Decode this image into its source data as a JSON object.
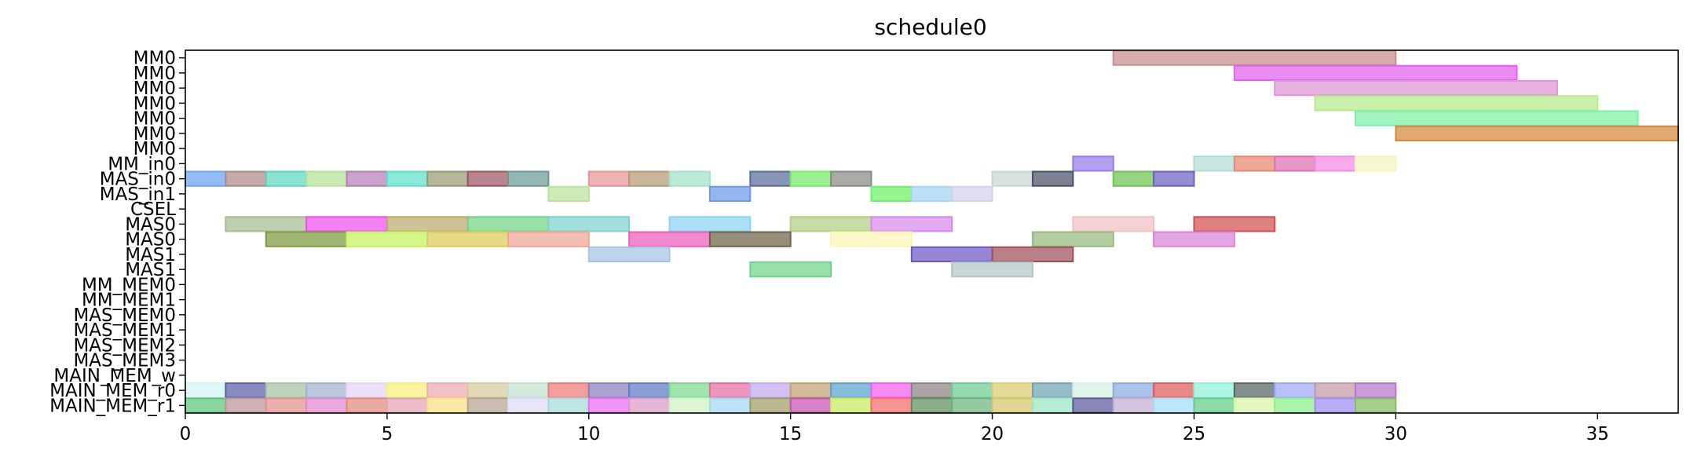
{
  "chart_data": {
    "type": "gantt",
    "title": "schedule0",
    "xlabel": "",
    "ylabel": "",
    "xlim": [
      0,
      37
    ],
    "grid": false,
    "xticks": [
      0,
      5,
      10,
      15,
      20,
      25,
      30,
      35
    ],
    "rows": [
      "MM0",
      "MM0",
      "MM0",
      "MM0",
      "MM0",
      "MM0",
      "MM0",
      "MM_in0",
      "MAS_in0",
      "MAS_in1",
      "CSEL",
      "MAS0",
      "MAS0",
      "MAS1",
      "MAS1",
      "MM_MEM0",
      "MM_MEM1",
      "MAS_MEM0",
      "MAS_MEM1",
      "MAS_MEM2",
      "MAS_MEM3",
      "MAIN_MEM_w",
      "MAIN_MEM_r0",
      "MAIN_MEM_r1"
    ],
    "tasks": [
      {
        "row": 0,
        "start": 23,
        "end": 30,
        "color": "#c98c8c"
      },
      {
        "row": 1,
        "start": 26,
        "end": 33,
        "color": "#e060ef"
      },
      {
        "row": 2,
        "start": 27,
        "end": 34,
        "color": "#de94d6"
      },
      {
        "row": 3,
        "start": 28,
        "end": 35,
        "color": "#b4ec8c"
      },
      {
        "row": 4,
        "start": 29,
        "end": 36,
        "color": "#7ef0a6"
      },
      {
        "row": 5,
        "start": 30,
        "end": 37,
        "color": "#d4883c"
      },
      {
        "row": 7,
        "start": 22,
        "end": 23,
        "color": "#957ce8"
      },
      {
        "row": 7,
        "start": 25,
        "end": 26,
        "color": "#b2dcd4"
      },
      {
        "row": 7,
        "start": 26,
        "end": 27,
        "color": "#e48870"
      },
      {
        "row": 7,
        "start": 27,
        "end": 28,
        "color": "#dc70b0"
      },
      {
        "row": 7,
        "start": 28,
        "end": 29,
        "color": "#f48ae4"
      },
      {
        "row": 7,
        "start": 29,
        "end": 30,
        "color": "#f4f4c2"
      },
      {
        "row": 8,
        "start": 0,
        "end": 1,
        "color": "#6aa2f4"
      },
      {
        "row": 8,
        "start": 1,
        "end": 2,
        "color": "#b08888"
      },
      {
        "row": 8,
        "start": 2,
        "end": 3,
        "color": "#5ed6c4"
      },
      {
        "row": 8,
        "start": 3,
        "end": 4,
        "color": "#b4e298"
      },
      {
        "row": 8,
        "start": 4,
        "end": 5,
        "color": "#b480b6"
      },
      {
        "row": 8,
        "start": 5,
        "end": 6,
        "color": "#5ee0ca"
      },
      {
        "row": 8,
        "start": 6,
        "end": 7,
        "color": "#9a9a72"
      },
      {
        "row": 8,
        "start": 7,
        "end": 8,
        "color": "#9c5462"
      },
      {
        "row": 8,
        "start": 8,
        "end": 9,
        "color": "#6e9896"
      },
      {
        "row": 8,
        "start": 10,
        "end": 11,
        "color": "#e69494"
      },
      {
        "row": 8,
        "start": 11,
        "end": 12,
        "color": "#b49a76"
      },
      {
        "row": 8,
        "start": 12,
        "end": 13,
        "color": "#a2e2c6"
      },
      {
        "row": 8,
        "start": 14,
        "end": 15,
        "color": "#5c6c9a"
      },
      {
        "row": 8,
        "start": 15,
        "end": 16,
        "color": "#74ec64"
      },
      {
        "row": 8,
        "start": 16,
        "end": 17,
        "color": "#888a84"
      },
      {
        "row": 8,
        "start": 20,
        "end": 21,
        "color": "#c6d8ce"
      },
      {
        "row": 8,
        "start": 21,
        "end": 22,
        "color": "#4c5066"
      },
      {
        "row": 8,
        "start": 23,
        "end": 24,
        "color": "#6cc452"
      },
      {
        "row": 8,
        "start": 24,
        "end": 25,
        "color": "#6a62be"
      },
      {
        "row": 9,
        "start": 9,
        "end": 10,
        "color": "#bce29a"
      },
      {
        "row": 9,
        "start": 13,
        "end": 14,
        "color": "#6c98e6"
      },
      {
        "row": 9,
        "start": 17,
        "end": 18,
        "color": "#6ef06a"
      },
      {
        "row": 9,
        "start": 18,
        "end": 19,
        "color": "#a4d4f0"
      },
      {
        "row": 9,
        "start": 19,
        "end": 20,
        "color": "#d4d0ee"
      },
      {
        "row": 11,
        "start": 1,
        "end": 3,
        "color": "#a8bc94"
      },
      {
        "row": 11,
        "start": 3,
        "end": 5,
        "color": "#ee50ee"
      },
      {
        "row": 11,
        "start": 5,
        "end": 7,
        "color": "#bcaa6c"
      },
      {
        "row": 11,
        "start": 7,
        "end": 9,
        "color": "#72d484"
      },
      {
        "row": 11,
        "start": 9,
        "end": 11,
        "color": "#7ed2d0"
      },
      {
        "row": 11,
        "start": 12,
        "end": 14,
        "color": "#8cd4f2"
      },
      {
        "row": 11,
        "start": 15,
        "end": 17,
        "color": "#b2d082"
      },
      {
        "row": 11,
        "start": 17,
        "end": 19,
        "color": "#da88ee"
      },
      {
        "row": 11,
        "start": 22,
        "end": 24,
        "color": "#f0c0c4"
      },
      {
        "row": 11,
        "start": 25,
        "end": 27,
        "color": "#d25050"
      },
      {
        "row": 12,
        "start": 2,
        "end": 4,
        "color": "#7e9a3e"
      },
      {
        "row": 12,
        "start": 4,
        "end": 6,
        "color": "#c4f25e"
      },
      {
        "row": 12,
        "start": 6,
        "end": 8,
        "color": "#dccc5c"
      },
      {
        "row": 12,
        "start": 8,
        "end": 10,
        "color": "#f0a494"
      },
      {
        "row": 12,
        "start": 11,
        "end": 13,
        "color": "#ee5cba"
      },
      {
        "row": 12,
        "start": 13,
        "end": 15,
        "color": "#6c6448"
      },
      {
        "row": 12,
        "start": 16,
        "end": 18,
        "color": "#fcf6b6"
      },
      {
        "row": 12,
        "start": 21,
        "end": 23,
        "color": "#96ba7e"
      },
      {
        "row": 12,
        "start": 24,
        "end": 26,
        "color": "#d884d6"
      },
      {
        "row": 13,
        "start": 10,
        "end": 12,
        "color": "#a8c2e6"
      },
      {
        "row": 13,
        "start": 18,
        "end": 20,
        "color": "#6e56c0"
      },
      {
        "row": 13,
        "start": 20,
        "end": 22,
        "color": "#9e5058"
      },
      {
        "row": 14,
        "start": 14,
        "end": 16,
        "color": "#6cd48a"
      },
      {
        "row": 14,
        "start": 19,
        "end": 21,
        "color": "#b0c6c6"
      },
      {
        "row": 22,
        "start": 0,
        "end": 1,
        "color": "#d2f4f2"
      },
      {
        "row": 22,
        "start": 1,
        "end": 2,
        "color": "#5a5ea6"
      },
      {
        "row": 22,
        "start": 2,
        "end": 3,
        "color": "#a6c2a2"
      },
      {
        "row": 22,
        "start": 3,
        "end": 4,
        "color": "#a4b2ce"
      },
      {
        "row": 22,
        "start": 4,
        "end": 5,
        "color": "#e6d6f8"
      },
      {
        "row": 22,
        "start": 5,
        "end": 6,
        "color": "#f8f07a"
      },
      {
        "row": 22,
        "start": 6,
        "end": 7,
        "color": "#eeaab2"
      },
      {
        "row": 22,
        "start": 7,
        "end": 8,
        "color": "#d6ca9c"
      },
      {
        "row": 22,
        "start": 8,
        "end": 9,
        "color": "#c4e0ce"
      },
      {
        "row": 22,
        "start": 9,
        "end": 10,
        "color": "#ee7a7a"
      },
      {
        "row": 22,
        "start": 10,
        "end": 11,
        "color": "#8a80bc"
      },
      {
        "row": 22,
        "start": 11,
        "end": 12,
        "color": "#6078c6"
      },
      {
        "row": 22,
        "start": 12,
        "end": 13,
        "color": "#7cd88c"
      },
      {
        "row": 22,
        "start": 13,
        "end": 14,
        "color": "#e46ca4"
      },
      {
        "row": 22,
        "start": 14,
        "end": 15,
        "color": "#c2a8ee"
      },
      {
        "row": 22,
        "start": 15,
        "end": 16,
        "color": "#c2a070"
      },
      {
        "row": 22,
        "start": 16,
        "end": 17,
        "color": "#5aa4cc"
      },
      {
        "row": 22,
        "start": 17,
        "end": 18,
        "color": "#f45ef0"
      },
      {
        "row": 22,
        "start": 18,
        "end": 19,
        "color": "#8a8480"
      },
      {
        "row": 22,
        "start": 19,
        "end": 20,
        "color": "#6ecc94"
      },
      {
        "row": 22,
        "start": 20,
        "end": 21,
        "color": "#dccc72"
      },
      {
        "row": 22,
        "start": 21,
        "end": 22,
        "color": "#6ea2b4"
      },
      {
        "row": 22,
        "start": 22,
        "end": 23,
        "color": "#d6f0e2"
      },
      {
        "row": 22,
        "start": 23,
        "end": 24,
        "color": "#8eaae0"
      },
      {
        "row": 22,
        "start": 24,
        "end": 25,
        "color": "#e05a5a"
      },
      {
        "row": 22,
        "start": 25,
        "end": 26,
        "color": "#8ef0d8"
      },
      {
        "row": 22,
        "start": 26,
        "end": 27,
        "color": "#566462"
      },
      {
        "row": 22,
        "start": 27,
        "end": 28,
        "color": "#9ea6f4"
      },
      {
        "row": 22,
        "start": 28,
        "end": 29,
        "color": "#c498a8"
      },
      {
        "row": 22,
        "start": 29,
        "end": 30,
        "color": "#b874cc"
      },
      {
        "row": 23,
        "start": 0,
        "end": 1,
        "color": "#5cc47a"
      },
      {
        "row": 23,
        "start": 1,
        "end": 2,
        "color": "#bc9498"
      },
      {
        "row": 23,
        "start": 2,
        "end": 3,
        "color": "#e2928e"
      },
      {
        "row": 23,
        "start": 3,
        "end": 4,
        "color": "#e288d0"
      },
      {
        "row": 23,
        "start": 4,
        "end": 5,
        "color": "#e08a7a"
      },
      {
        "row": 23,
        "start": 5,
        "end": 6,
        "color": "#e4a2b4"
      },
      {
        "row": 23,
        "start": 6,
        "end": 7,
        "color": "#f8e084"
      },
      {
        "row": 23,
        "start": 7,
        "end": 8,
        "color": "#b4a48e"
      },
      {
        "row": 23,
        "start": 8,
        "end": 9,
        "color": "#dcdcf4"
      },
      {
        "row": 23,
        "start": 9,
        "end": 10,
        "color": "#a4dcd8"
      },
      {
        "row": 23,
        "start": 10,
        "end": 11,
        "color": "#ec6cf2"
      },
      {
        "row": 23,
        "start": 11,
        "end": 12,
        "color": "#dc9ac6"
      },
      {
        "row": 23,
        "start": 12,
        "end": 13,
        "color": "#cef2c4"
      },
      {
        "row": 23,
        "start": 13,
        "end": 14,
        "color": "#a6d8f2"
      },
      {
        "row": 23,
        "start": 14,
        "end": 15,
        "color": "#9e9c62"
      },
      {
        "row": 23,
        "start": 15,
        "end": 16,
        "color": "#c652b2"
      },
      {
        "row": 23,
        "start": 16,
        "end": 17,
        "color": "#c6ec5e"
      },
      {
        "row": 23,
        "start": 17,
        "end": 18,
        "color": "#f46c6c"
      },
      {
        "row": 23,
        "start": 18,
        "end": 19,
        "color": "#5e8e5e"
      },
      {
        "row": 23,
        "start": 19,
        "end": 20,
        "color": "#6ab480"
      },
      {
        "row": 23,
        "start": 20,
        "end": 21,
        "color": "#d2c66c"
      },
      {
        "row": 23,
        "start": 21,
        "end": 22,
        "color": "#9ae8c4"
      },
      {
        "row": 23,
        "start": 22,
        "end": 23,
        "color": "#5a5a9e"
      },
      {
        "row": 23,
        "start": 23,
        "end": 24,
        "color": "#c4aed2"
      },
      {
        "row": 23,
        "start": 24,
        "end": 25,
        "color": "#a4dcf6"
      },
      {
        "row": 23,
        "start": 25,
        "end": 26,
        "color": "#62cc88"
      },
      {
        "row": 23,
        "start": 26,
        "end": 27,
        "color": "#d8f4a8"
      },
      {
        "row": 23,
        "start": 27,
        "end": 28,
        "color": "#8aee8a"
      },
      {
        "row": 23,
        "start": 28,
        "end": 29,
        "color": "#a08ef4"
      },
      {
        "row": 23,
        "start": 29,
        "end": 30,
        "color": "#86ba64"
      }
    ]
  }
}
